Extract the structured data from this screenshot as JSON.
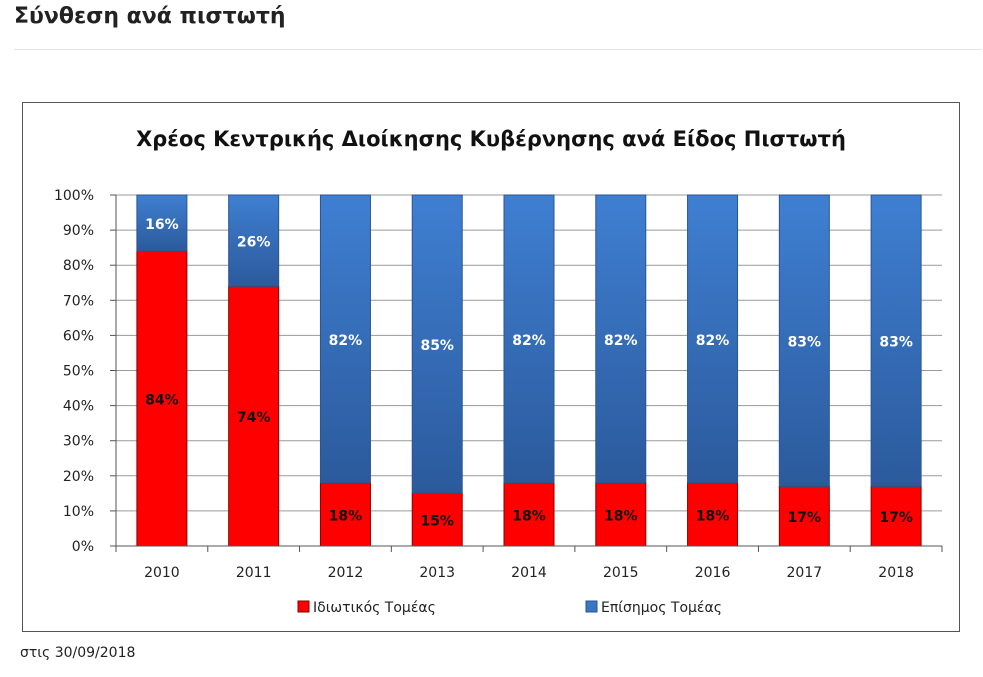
{
  "page": {
    "section_title": "Σύνθεση ανά πιστωτή",
    "footnote": "στις 30/09/2018"
  },
  "colors": {
    "private": "#ff0000",
    "official": "#3a76c6"
  },
  "chart_data": {
    "type": "bar",
    "stacked": true,
    "title": "Χρέος Κεντρικής Διοίκησης Κυβέρνησης ανά Είδος Πιστωτή",
    "xlabel": "",
    "ylabel": "",
    "ylim": [
      0,
      100
    ],
    "yticks": [
      "0%",
      "10%",
      "20%",
      "30%",
      "40%",
      "50%",
      "60%",
      "70%",
      "80%",
      "90%",
      "100%"
    ],
    "categories": [
      "2010",
      "2011",
      "2012",
      "2013",
      "2014",
      "2015",
      "2016",
      "2017",
      "2018"
    ],
    "series": [
      {
        "name": "Ιδιωτικός Τομέας",
        "values": [
          84,
          74,
          18,
          15,
          18,
          18,
          18,
          17,
          17
        ]
      },
      {
        "name": "Επίσημος Τομέας",
        "values": [
          16,
          26,
          82,
          85,
          82,
          82,
          82,
          83,
          83
        ]
      }
    ],
    "data_labels": [
      [
        "84%",
        "74%",
        "18%",
        "15%",
        "18%",
        "18%",
        "18%",
        "17%",
        "17%"
      ],
      [
        "16%",
        "26%",
        "82%",
        "85%",
        "82%",
        "82%",
        "82%",
        "83%",
        "83%"
      ]
    ],
    "grid": true,
    "legend": "bottom"
  }
}
